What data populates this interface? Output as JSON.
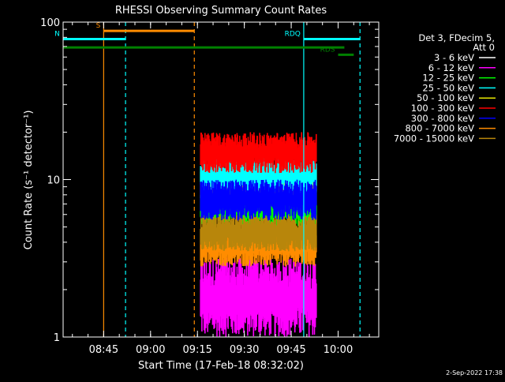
{
  "chart_data": {
    "type": "line",
    "title": "RHESSI Observing Summary Count Rates",
    "xlabel": "Start Time (17-Feb-18 08:32:02)",
    "ylabel": "Count Rate (s⁻¹ detector⁻¹)",
    "y_scale": "log",
    "ylim": [
      1,
      100
    ],
    "xlim": [
      "08:32:02",
      "10:13:00"
    ],
    "x_ticks": [
      "08:45",
      "09:00",
      "09:15",
      "09:30",
      "09:45",
      "10:00"
    ],
    "y_ticks": [
      "1",
      "10",
      "100"
    ],
    "legend_header": [
      "Det 3, FDecim 5,",
      "Att 0"
    ],
    "legend_placement": "right",
    "series": [
      {
        "name": "3 - 6 keV",
        "color": "#ffffff",
        "range": null
      },
      {
        "name": "6 - 12 keV",
        "color": "#ff00ff",
        "range": [
          1.0,
          3.2
        ]
      },
      {
        "name": "12 - 25 keV",
        "color": "#00ff00",
        "range": [
          5.0,
          9.0
        ]
      },
      {
        "name": "25 - 50 keV",
        "color": "#00ffff",
        "range": [
          8.0,
          14.0
        ]
      },
      {
        "name": "50 - 100 keV",
        "color": "#e6e600",
        "range": [
          7.0,
          12.0
        ]
      },
      {
        "name": "100 - 300 keV",
        "color": "#ff0000",
        "range": [
          11.0,
          20.0
        ]
      },
      {
        "name": "300 - 800 keV",
        "color": "#0000ff",
        "range": [
          5.5,
          10.0
        ]
      },
      {
        "name": "800 - 7000 keV",
        "color": "#ff8c00",
        "range": [
          2.8,
          5.0
        ]
      },
      {
        "name": "7000 - 15000 keV",
        "color": "#b8860b",
        "range": [
          3.5,
          6.0
        ]
      }
    ],
    "data_span": [
      "09:16",
      "09:53"
    ],
    "flags": [
      {
        "label": "S",
        "color": "#ff8c00",
        "start": "08:45",
        "end": "09:14",
        "level": 88
      },
      {
        "label": "N",
        "color": "#00ffff",
        "start": "08:32",
        "end": "08:52",
        "level": 78
      },
      {
        "label": "RDQ",
        "color": "#00ffff",
        "start": "09:49",
        "end": "10:07",
        "level": 78
      },
      {
        "label": "",
        "color": "#008000",
        "start": "08:32",
        "end": "10:02",
        "level": 69
      },
      {
        "label": "RDS",
        "color": "#008000",
        "start": "10:00",
        "end": "10:05",
        "level": 62
      }
    ],
    "vlines": [
      {
        "time": "08:45",
        "color": "#ff8c00",
        "dashed": false
      },
      {
        "time": "08:52",
        "color": "#00ffff",
        "dashed": true
      },
      {
        "time": "09:14",
        "color": "#ff8c00",
        "dashed": true
      },
      {
        "time": "09:49",
        "color": "#00ffff",
        "dashed": false
      },
      {
        "time": "10:07",
        "color": "#00ffff",
        "dashed": true
      }
    ]
  },
  "timestamp": "2-Sep-2022 17:38"
}
